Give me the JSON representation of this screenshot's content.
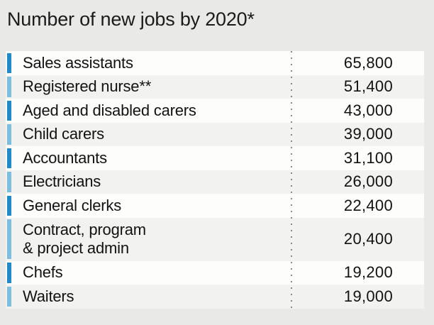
{
  "title": "Number of new jobs by 2020*",
  "colors": {
    "background": "#e9e9e7",
    "row_white": "#fdfdfc",
    "row_gray": "#f2f2f0",
    "bar_dark_blue": "#1f8ac8",
    "bar_light_blue": "#7fbdde",
    "dotted_divider": "#8a8a8a",
    "text": "#121212"
  },
  "chart_data": {
    "type": "table",
    "title": "Number of new jobs by 2020*",
    "categories": [
      "Sales assistants",
      "Registered nurse**",
      "Aged and disabled carers",
      "Child carers",
      "Accountants",
      "Electricians",
      "General clerks",
      "Contract, program & project admin",
      "Chefs",
      "Waiters"
    ],
    "values": [
      65800,
      51400,
      43000,
      39000,
      31100,
      26000,
      22400,
      20400,
      19200,
      19000
    ],
    "value_labels": [
      "65,800",
      "51,400",
      "43,000",
      "39,000",
      "31,100",
      "26,000",
      "22,400",
      "20,400",
      "19,200",
      "19,000"
    ],
    "legend_position": "none",
    "grid": false
  },
  "rows": [
    {
      "label": "Sales assistants",
      "value": "65,800",
      "bar": "dark"
    },
    {
      "label": "Registered nurse**",
      "value": "51,400",
      "bar": "light"
    },
    {
      "label": "Aged and disabled carers",
      "value": "43,000",
      "bar": "dark"
    },
    {
      "label": "Child carers",
      "value": "39,000",
      "bar": "light"
    },
    {
      "label": "Accountants",
      "value": "31,100",
      "bar": "dark"
    },
    {
      "label": "Electricians",
      "value": "26,000",
      "bar": "light"
    },
    {
      "label": "General clerks",
      "value": "22,400",
      "bar": "dark"
    },
    {
      "label": "Contract, program\n& project admin",
      "value": "20,400",
      "bar": "light"
    },
    {
      "label": "Chefs",
      "value": "19,200",
      "bar": "dark"
    },
    {
      "label": "Waiters",
      "value": "19,000",
      "bar": "light"
    }
  ]
}
